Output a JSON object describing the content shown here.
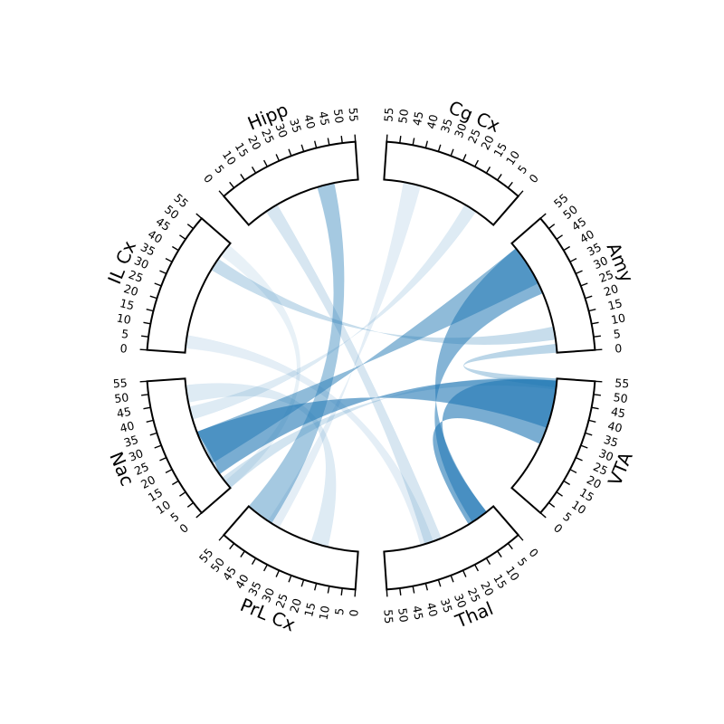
{
  "diagram": {
    "type": "circular-chord-diagram",
    "colors": {
      "link": "#1f77b4",
      "frame": "#000000",
      "background": "#ffffff"
    },
    "regions": [
      {
        "name": "Amy",
        "direction": "reversed"
      },
      {
        "name": "Cg Cx",
        "direction": "reversed"
      },
      {
        "name": "Hipp",
        "direction": "forward"
      },
      {
        "name": "IL Cx",
        "direction": "forward"
      },
      {
        "name": "Nac",
        "direction": "forward"
      },
      {
        "name": "PrL Cx",
        "direction": "forward"
      },
      {
        "name": "Thal",
        "direction": "forward"
      },
      {
        "name": "VTA",
        "direction": "reversed"
      }
    ],
    "axis": {
      "min": 0,
      "max": 55,
      "tick_step": 5,
      "tick_labels": [
        "0",
        "5",
        "10",
        "15",
        "20",
        "25",
        "30",
        "35",
        "40",
        "45",
        "50",
        "55"
      ]
    },
    "connections": [
      {
        "from": "Amy",
        "from_range": [
          28,
          52
        ],
        "to": "Thal",
        "to_range": [
          4,
          12
        ],
        "strength": 0.55
      },
      {
        "from": "Amy",
        "from_range": [
          33,
          52
        ],
        "to": "Nac",
        "to_range": [
          14,
          30
        ],
        "strength": 0.5
      },
      {
        "from": "VTA",
        "from_range": [
          24,
          54
        ],
        "to": "Thal",
        "to_range": [
          4,
          14
        ],
        "strength": 0.6
      },
      {
        "from": "VTA",
        "from_range": [
          32,
          54
        ],
        "to": "Nac",
        "to_range": [
          8,
          30
        ],
        "strength": 0.6
      },
      {
        "from": "VTA",
        "from_range": [
          50,
          55
        ],
        "to": "Nac",
        "to_range": [
          0,
          6
        ],
        "strength": 0.2
      },
      {
        "from": "Amy",
        "from_range": [
          6,
          12
        ],
        "to": "IL Cx",
        "to_range": [
          40,
          46
        ],
        "strength": 0.25
      },
      {
        "from": "Amy",
        "from_range": [
          0,
          4
        ],
        "to": "VTA",
        "to_range": [
          51,
          55
        ],
        "strength": 0.3
      },
      {
        "from": "Hipp",
        "from_range": [
          36,
          44
        ],
        "to": "PrL Cx",
        "to_range": [
          42,
          55
        ],
        "strength": 0.4
      },
      {
        "from": "Hipp",
        "from_range": [
          10,
          16
        ],
        "to": "Thal",
        "to_range": [
          28,
          36
        ],
        "strength": 0.18
      },
      {
        "from": "Cg Cx",
        "from_range": [
          10,
          16
        ],
        "to": "Nac",
        "to_range": [
          36,
          42
        ],
        "strength": 0.15
      },
      {
        "from": "Cg Cx",
        "from_range": [
          38,
          46
        ],
        "to": "PrL Cx",
        "to_range": [
          38,
          44
        ],
        "strength": 0.12
      },
      {
        "from": "IL Cx",
        "from_range": [
          2,
          8
        ],
        "to": "Thal",
        "to_range": [
          32,
          38
        ],
        "strength": 0.12
      },
      {
        "from": "Nac",
        "from_range": [
          44,
          52
        ],
        "to": "PrL Cx",
        "to_range": [
          14,
          22
        ],
        "strength": 0.15
      },
      {
        "from": "IL Cx",
        "from_range": [
          48,
          54
        ],
        "to": "Nac",
        "to_range": [
          0,
          4
        ],
        "strength": 0.1
      }
    ]
  }
}
